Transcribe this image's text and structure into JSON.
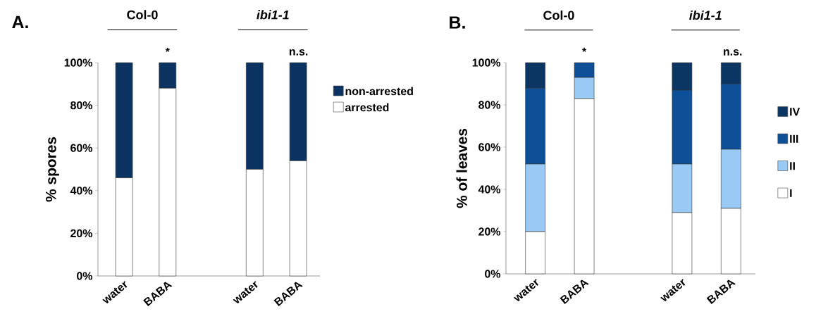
{
  "chart_data": [
    {
      "type": "bar",
      "title": "A.",
      "ylabel": "% spores",
      "stacked": true,
      "legend": "right",
      "categories": [
        "water",
        "BABA",
        null,
        "water",
        "BABA"
      ],
      "series": [
        {
          "name": "arrested",
          "color": "#ffffff",
          "values": [
            46,
            88,
            null,
            50,
            54
          ]
        },
        {
          "name": "non-arrested",
          "color": "#0b3361",
          "values": [
            54,
            12,
            null,
            50,
            46
          ]
        }
      ],
      "ylim": [
        0,
        100
      ],
      "yticks": [
        {
          "value": 0,
          "label": "0%"
        },
        {
          "value": 20,
          "label": "20%"
        },
        {
          "value": 40,
          "label": "40%"
        },
        {
          "value": 60,
          "label": "60%"
        },
        {
          "value": 80,
          "label": "80%"
        },
        {
          "value": 100,
          "label": "100%"
        }
      ],
      "annotations": [
        "Col-0",
        "*ibi1-1*",
        "*",
        "n.s."
      ]
    },
    {
      "type": "bar",
      "title": "B.",
      "ylabel": "% of leaves",
      "stacked": true,
      "legend": "right",
      "categories": [
        "water",
        "BABA",
        null,
        "water",
        "BABA"
      ],
      "series": [
        {
          "name": "I",
          "color": "#ffffff",
          "values": [
            20,
            83,
            null,
            29,
            31
          ]
        },
        {
          "name": "II",
          "color": "#99c9f5",
          "values": [
            32,
            10,
            null,
            23,
            28
          ]
        },
        {
          "name": "III",
          "color": "#0e5097",
          "values": [
            36,
            7,
            null,
            35,
            31
          ]
        },
        {
          "name": "IV",
          "color": "#0b3562",
          "values": [
            12,
            0,
            null,
            13,
            10
          ]
        }
      ],
      "ylim": [
        0,
        100
      ],
      "yticks": [
        {
          "value": 0,
          "label": "0%"
        },
        {
          "value": 20,
          "label": "20%"
        },
        {
          "value": 40,
          "label": "40%"
        },
        {
          "value": 60,
          "label": "60%"
        },
        {
          "value": 80,
          "label": "80%"
        },
        {
          "value": 100,
          "label": "100%"
        }
      ],
      "annotations": [
        "Col-0",
        "*ibi1-1*",
        "*",
        "n.s."
      ]
    }
  ]
}
